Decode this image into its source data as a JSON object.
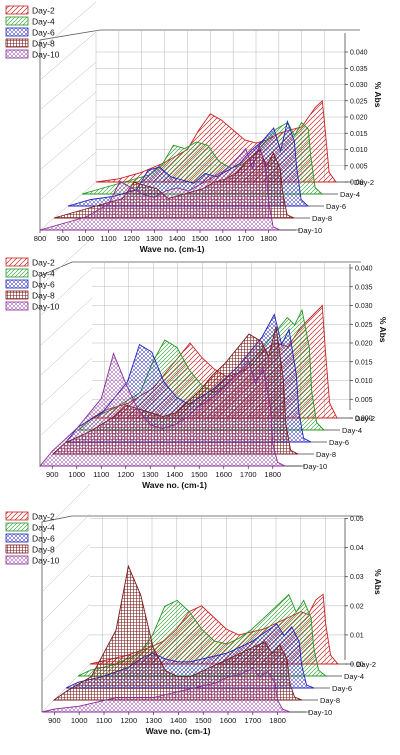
{
  "chart_data": [
    {
      "type": "area",
      "title": "",
      "xlabel": "Wave no. (cm-1)",
      "zlabel": "% Abs",
      "x_ticks": [
        "800",
        "900",
        "1000",
        "1100",
        "1200",
        "1300",
        "1400",
        "1500",
        "1600",
        "1700",
        "1800"
      ],
      "z_ticks": [
        "0.00",
        "0.005",
        "0.010",
        "0.015",
        "0.020",
        "0.025",
        "0.030",
        "0.035",
        "0.040"
      ],
      "legend": [
        "Day-2",
        "Day-4",
        "Day-6",
        "Day-8",
        "Day-10"
      ],
      "series_labels": [
        "Day-2",
        "Day-4",
        "Day-6",
        "Day-8",
        "Day-10"
      ],
      "xlim": [
        800,
        1850
      ],
      "zlim": [
        -0.006,
        0.04
      ],
      "series": [
        {
          "name": "Day-2",
          "x": [
            800,
            900,
            1000,
            1100,
            1150,
            1200,
            1250,
            1300,
            1350,
            1400,
            1450,
            1500,
            1550,
            1600,
            1650,
            1700,
            1730,
            1760,
            1790,
            1800,
            1820,
            1850
          ],
          "values": [
            0.0,
            0.001,
            0.003,
            0.006,
            0.008,
            0.01,
            0.016,
            0.021,
            0.019,
            0.016,
            0.013,
            0.012,
            0.013,
            0.015,
            0.016,
            0.017,
            0.02,
            0.023,
            0.025,
            0.018,
            0.003,
            0.0
          ]
        },
        {
          "name": "Day-4",
          "x": [
            800,
            900,
            1000,
            1100,
            1150,
            1200,
            1250,
            1300,
            1350,
            1400,
            1450,
            1500,
            1550,
            1600,
            1650,
            1700,
            1730,
            1760,
            1790,
            1800,
            1820,
            1850
          ],
          "values": [
            0.0,
            0.002,
            0.004,
            0.006,
            0.009,
            0.015,
            0.014,
            0.016,
            0.015,
            0.01,
            0.008,
            0.009,
            0.012,
            0.016,
            0.02,
            0.022,
            0.018,
            0.022,
            0.02,
            0.012,
            0.002,
            0.0
          ]
        },
        {
          "name": "Day-6",
          "x": [
            800,
            900,
            1000,
            1100,
            1150,
            1200,
            1250,
            1300,
            1350,
            1400,
            1450,
            1500,
            1550,
            1600,
            1650,
            1700,
            1730,
            1760,
            1790,
            1800,
            1820,
            1850
          ],
          "values": [
            0.0,
            0.002,
            0.003,
            0.005,
            0.011,
            0.012,
            0.009,
            0.008,
            0.007,
            0.01,
            0.009,
            0.011,
            0.013,
            0.017,
            0.02,
            0.024,
            0.017,
            0.026,
            0.02,
            0.012,
            0.002,
            0.0
          ]
        },
        {
          "name": "Day-8",
          "x": [
            800,
            900,
            1000,
            1100,
            1150,
            1200,
            1250,
            1300,
            1350,
            1400,
            1450,
            1500,
            1550,
            1600,
            1650,
            1700,
            1730,
            1760,
            1790,
            1800,
            1820,
            1850
          ],
          "values": [
            0.0,
            0.002,
            0.004,
            0.006,
            0.011,
            0.01,
            0.009,
            0.006,
            0.007,
            0.008,
            0.009,
            0.011,
            0.012,
            0.014,
            0.018,
            0.021,
            0.016,
            0.02,
            0.015,
            0.008,
            0.001,
            0.0
          ]
        },
        {
          "name": "Day-10",
          "x": [
            800,
            900,
            1000,
            1100,
            1150,
            1200,
            1250,
            1300,
            1350,
            1400,
            1450,
            1500,
            1550,
            1600,
            1650,
            1700,
            1730,
            1760,
            1790,
            1800,
            1820,
            1850
          ],
          "values": [
            0.0,
            0.002,
            0.004,
            0.008,
            0.015,
            0.013,
            0.011,
            0.01,
            0.012,
            0.013,
            0.012,
            0.014,
            0.016,
            0.018,
            0.021,
            0.025,
            0.019,
            0.026,
            0.018,
            0.009,
            0.001,
            0.0
          ]
        }
      ]
    },
    {
      "type": "area",
      "title": "",
      "xlabel": "Wave no. (cm-1)",
      "zlabel": "% Abs",
      "x_ticks": [
        "900",
        "1000",
        "1100",
        "1200",
        "1300",
        "1400",
        "1500",
        "1600",
        "1700",
        "1800"
      ],
      "z_ticks": [
        "0.000",
        "0.005",
        "0.010",
        "0.015",
        "0.020",
        "0.025",
        "0.030",
        "0.035",
        "0.040"
      ],
      "legend": [
        "Day-2",
        "Day-4",
        "Day-6",
        "Day-8",
        "Day-10"
      ],
      "series_labels": [
        "Day-2",
        "Day-4",
        "Day-6",
        "Day-8",
        "Day-10"
      ],
      "xlim": [
        850,
        1850
      ],
      "zlim": [
        -0.006,
        0.04
      ],
      "series": [
        {
          "name": "Day-2",
          "x": [
            850,
            900,
            1000,
            1100,
            1150,
            1200,
            1250,
            1300,
            1350,
            1400,
            1450,
            1500,
            1550,
            1600,
            1650,
            1700,
            1730,
            1760,
            1790,
            1800,
            1820,
            1850
          ],
          "values": [
            0.0,
            0.002,
            0.004,
            0.008,
            0.012,
            0.016,
            0.02,
            0.016,
            0.013,
            0.011,
            0.012,
            0.014,
            0.018,
            0.02,
            0.019,
            0.024,
            0.026,
            0.028,
            0.03,
            0.02,
            0.004,
            0.0
          ]
        },
        {
          "name": "Day-4",
          "x": [
            850,
            900,
            1000,
            1100,
            1150,
            1200,
            1250,
            1300,
            1350,
            1400,
            1450,
            1500,
            1550,
            1600,
            1650,
            1700,
            1730,
            1760,
            1790,
            1800,
            1820,
            1850
          ],
          "values": [
            0.0,
            0.003,
            0.006,
            0.01,
            0.018,
            0.024,
            0.022,
            0.016,
            0.012,
            0.01,
            0.012,
            0.015,
            0.018,
            0.022,
            0.026,
            0.03,
            0.028,
            0.032,
            0.022,
            0.01,
            0.002,
            0.0
          ]
        },
        {
          "name": "Day-6",
          "x": [
            850,
            900,
            1000,
            1100,
            1150,
            1200,
            1250,
            1300,
            1350,
            1400,
            1450,
            1500,
            1550,
            1600,
            1650,
            1700,
            1730,
            1760,
            1790,
            1800,
            1820,
            1850
          ],
          "values": [
            0.0,
            0.004,
            0.008,
            0.016,
            0.026,
            0.024,
            0.016,
            0.012,
            0.01,
            0.012,
            0.014,
            0.017,
            0.02,
            0.024,
            0.028,
            0.034,
            0.026,
            0.03,
            0.018,
            0.008,
            0.001,
            0.0
          ]
        },
        {
          "name": "Day-8",
          "x": [
            850,
            900,
            1000,
            1100,
            1150,
            1200,
            1250,
            1300,
            1350,
            1400,
            1450,
            1500,
            1550,
            1600,
            1650,
            1700,
            1730,
            1760,
            1790,
            1800,
            1820,
            1850
          ],
          "values": [
            0.0,
            0.003,
            0.006,
            0.01,
            0.013,
            0.012,
            0.011,
            0.01,
            0.011,
            0.014,
            0.017,
            0.021,
            0.024,
            0.028,
            0.032,
            0.03,
            0.026,
            0.034,
            0.02,
            0.008,
            0.001,
            0.0
          ]
        },
        {
          "name": "Day-10",
          "x": [
            850,
            900,
            1000,
            1100,
            1150,
            1200,
            1250,
            1300,
            1350,
            1400,
            1450,
            1500,
            1550,
            1600,
            1650,
            1700,
            1730,
            1760,
            1790,
            1800,
            1820,
            1850
          ],
          "values": [
            0.0,
            0.004,
            0.01,
            0.018,
            0.03,
            0.022,
            0.015,
            0.011,
            0.01,
            0.011,
            0.013,
            0.016,
            0.018,
            0.021,
            0.024,
            0.028,
            0.022,
            0.026,
            0.016,
            0.006,
            0.001,
            0.0
          ]
        }
      ]
    },
    {
      "type": "area",
      "title": "",
      "xlabel": "Wave no. (cm-1)",
      "zlabel": "% Abs",
      "x_ticks": [
        "900",
        "1000",
        "1100",
        "1200",
        "1300",
        "1400",
        "1500",
        "1600",
        "1700",
        "1800"
      ],
      "z_ticks": [
        "0.00",
        "0.01",
        "0.02",
        "0.03",
        "0.04",
        "0.05"
      ],
      "legend": [
        "Day-2",
        "Day-4",
        "Day-6",
        "Day-8",
        "Day-10"
      ],
      "series_labels": [
        "Day-2",
        "Day-4",
        "Day-6",
        "Day-8",
        "Day-10"
      ],
      "xlim": [
        850,
        1850
      ],
      "zlim": [
        -0.006,
        0.055
      ],
      "series": [
        {
          "name": "Day-2",
          "x": [
            850,
            900,
            1000,
            1100,
            1150,
            1200,
            1250,
            1300,
            1350,
            1400,
            1450,
            1500,
            1550,
            1600,
            1650,
            1700,
            1730,
            1760,
            1790,
            1800,
            1820,
            1850
          ],
          "values": [
            0.0,
            0.001,
            0.003,
            0.006,
            0.008,
            0.012,
            0.018,
            0.02,
            0.016,
            0.012,
            0.01,
            0.011,
            0.012,
            0.014,
            0.016,
            0.018,
            0.017,
            0.022,
            0.024,
            0.014,
            0.003,
            0.0
          ]
        },
        {
          "name": "Day-4",
          "x": [
            850,
            900,
            1000,
            1100,
            1150,
            1200,
            1250,
            1300,
            1350,
            1400,
            1450,
            1500,
            1550,
            1600,
            1650,
            1700,
            1730,
            1760,
            1790,
            1800,
            1820,
            1850
          ],
          "values": [
            0.0,
            0.002,
            0.004,
            0.008,
            0.014,
            0.024,
            0.026,
            0.022,
            0.016,
            0.012,
            0.011,
            0.013,
            0.016,
            0.02,
            0.024,
            0.028,
            0.022,
            0.026,
            0.02,
            0.01,
            0.002,
            0.0
          ]
        },
        {
          "name": "Day-6",
          "x": [
            850,
            900,
            1000,
            1100,
            1150,
            1200,
            1250,
            1300,
            1350,
            1400,
            1450,
            1500,
            1550,
            1600,
            1650,
            1700,
            1730,
            1760,
            1790,
            1800,
            1820,
            1850
          ],
          "values": [
            0.0,
            0.002,
            0.004,
            0.007,
            0.01,
            0.012,
            0.01,
            0.009,
            0.009,
            0.01,
            0.011,
            0.012,
            0.014,
            0.016,
            0.019,
            0.022,
            0.018,
            0.021,
            0.016,
            0.008,
            0.001,
            0.0
          ]
        },
        {
          "name": "Day-8",
          "x": [
            850,
            900,
            1000,
            1100,
            1150,
            1200,
            1250,
            1300,
            1350,
            1400,
            1450,
            1500,
            1550,
            1600,
            1650,
            1700,
            1730,
            1760,
            1790,
            1800,
            1820,
            1850
          ],
          "values": [
            0.0,
            0.003,
            0.008,
            0.024,
            0.046,
            0.036,
            0.018,
            0.01,
            0.008,
            0.008,
            0.01,
            0.012,
            0.014,
            0.016,
            0.018,
            0.02,
            0.016,
            0.019,
            0.014,
            0.006,
            0.001,
            0.0
          ]
        },
        {
          "name": "Day-10",
          "x": [
            850,
            900,
            1000,
            1100,
            1150,
            1200,
            1250,
            1300,
            1350,
            1400,
            1450,
            1500,
            1550,
            1600,
            1650,
            1700,
            1730,
            1760,
            1790,
            1800,
            1820,
            1850
          ],
          "values": [
            0.0,
            0.001,
            0.002,
            0.004,
            0.005,
            0.005,
            0.005,
            0.005,
            0.006,
            0.007,
            0.008,
            0.009,
            0.01,
            0.012,
            0.013,
            0.015,
            0.012,
            0.014,
            0.01,
            0.004,
            0.001,
            0.0
          ]
        }
      ]
    }
  ],
  "colors": {
    "Day-2": "#cc2222",
    "Day-4": "#229922",
    "Day-6": "#2222bb",
    "Day-8": "#7a1a1a",
    "Day-10": "#8a2a9a"
  }
}
